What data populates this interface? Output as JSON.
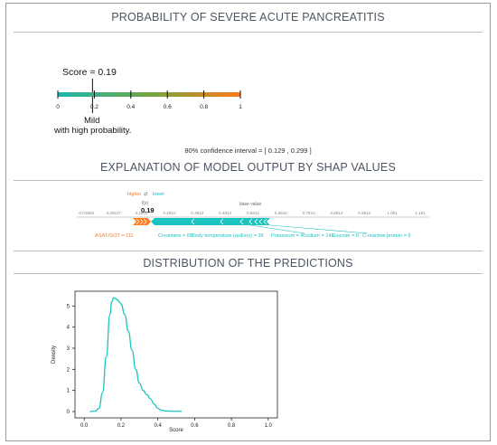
{
  "header": {
    "title": "PROBABILITY OF SEVERE ACUTE PANCREATITIS"
  },
  "gauge": {
    "score_label": "Score = 0.19",
    "score": 0.19,
    "ticks": [
      "0",
      "0.2",
      "0.4",
      "0.6",
      "0.8",
      "1"
    ],
    "category": "Mild",
    "probability_text": "with high probability.",
    "colors": {
      "low": "#19b7ad",
      "mid": "#7ea33b",
      "high": "#ff7a1a"
    }
  },
  "confidence": {
    "text": "80% confidence interval = [ 0.129 , 0.299 ]"
  },
  "shap": {
    "title": "EXPLANATION OF MODEL OUTPUT BY SHAP VALUES",
    "legend_higher": "higher",
    "legend_lower": "lower",
    "legend_fx": "f(x)",
    "value_label": "0.19",
    "base_value_label": "base value",
    "axis_ticks": [
      "-0.01883",
      "0.08117",
      "0.1812",
      "0.2812",
      "0.3812",
      "0.4812",
      "0.5812",
      "0.6812",
      "0.7812",
      "0.8812",
      "0.9812",
      "1.081",
      "1.181"
    ],
    "positive_features": [
      "ASAT/GOT = 111"
    ],
    "negative_features": [
      "Creatinine = 65",
      "Body temperature (axillary) = 36",
      "Potassium = 4",
      "Sodium = 141",
      "Glucose = 6",
      "C-reactive protein = 6"
    ],
    "colors": {
      "positive": "#ff7a1a",
      "negative": "#19c3bf"
    }
  },
  "distribution": {
    "title": "DISTRIBUTION OF THE PREDICTIONS",
    "xlabel": "Score",
    "ylabel": "Density",
    "x_ticks": [
      "0.0",
      "0.2",
      "0.4",
      "0.6",
      "0.8",
      "1.0"
    ],
    "y_ticks": [
      "0",
      "1",
      "2",
      "3",
      "4",
      "5"
    ],
    "line_color": "#19c3bf"
  },
  "chart_data": {
    "type": "line",
    "title": "DISTRIBUTION OF THE PREDICTIONS",
    "xlabel": "Score",
    "ylabel": "Density",
    "xlim": [
      -0.05,
      1.05
    ],
    "ylim": [
      -0.3,
      5.7
    ],
    "x": [
      0.03,
      0.06,
      0.08,
      0.1,
      0.12,
      0.14,
      0.15,
      0.16,
      0.17,
      0.18,
      0.19,
      0.2,
      0.22,
      0.24,
      0.26,
      0.28,
      0.3,
      0.32,
      0.34,
      0.36,
      0.38,
      0.4,
      0.42,
      0.45,
      0.5,
      0.53
    ],
    "y": [
      0.0,
      0.02,
      0.15,
      0.9,
      2.6,
      4.6,
      5.2,
      5.4,
      5.35,
      5.3,
      5.2,
      5.1,
      4.6,
      3.8,
      2.9,
      2.0,
      1.35,
      1.0,
      0.8,
      0.6,
      0.35,
      0.15,
      0.06,
      0.02,
      0.01,
      0.01
    ]
  }
}
